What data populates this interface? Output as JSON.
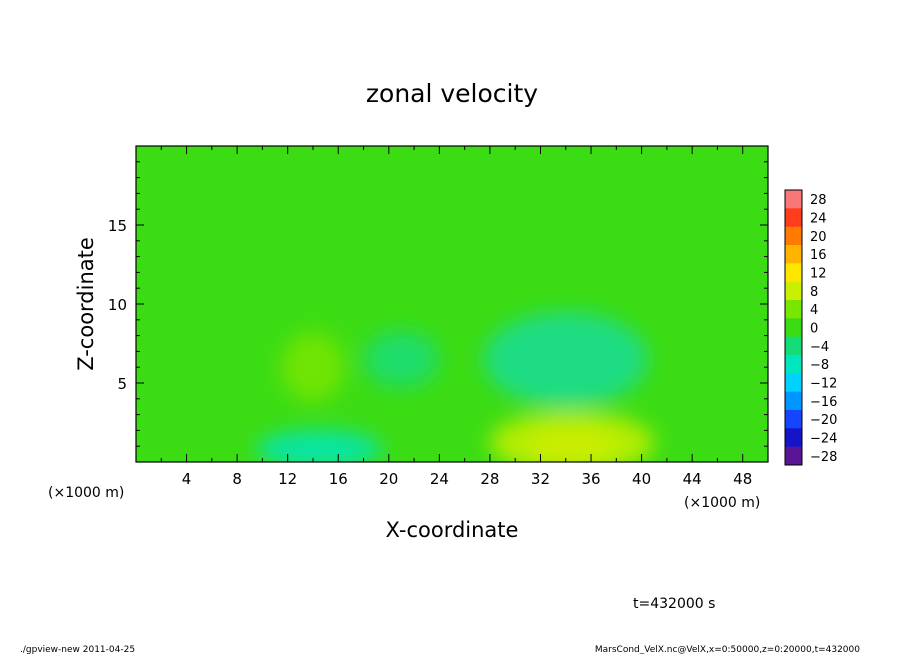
{
  "chart_data": {
    "type": "heatmap",
    "title": "zonal velocity",
    "xlabel": "X-coordinate",
    "ylabel": "Z-coordinate",
    "x_unit": "(×1000 m)",
    "z_unit": "(×1000 m)",
    "xlim": [
      0,
      50
    ],
    "ylim": [
      0,
      20
    ],
    "x_ticks": [
      4,
      8,
      12,
      16,
      20,
      24,
      28,
      32,
      36,
      40,
      44,
      48
    ],
    "y_ticks": [
      5,
      10,
      15
    ],
    "colorbar": {
      "levels": [
        28,
        24,
        20,
        16,
        12,
        8,
        4,
        0,
        -4,
        -8,
        -12,
        -16,
        -20,
        -24,
        -28
      ],
      "labels": [
        "28",
        "24",
        "20",
        "16",
        "12",
        "8",
        "4",
        "0",
        "−4",
        "−8",
        "−12",
        "−16",
        "−20",
        "−24",
        "−28"
      ],
      "colors": [
        "#f87878",
        "#ff3c1c",
        "#ff7a00",
        "#ffb400",
        "#ffe600",
        "#c8f000",
        "#78e600",
        "#3cdc14",
        "#14dc78",
        "#00e6be",
        "#00d2ff",
        "#0096ff",
        "#1446ff",
        "#1414c8",
        "#5a1496"
      ]
    },
    "background_value_color": "#3cdc14",
    "features": [
      {
        "x": 34.5,
        "z": 1.0,
        "value": 12,
        "color": "#ffe600",
        "rx": 3.5,
        "rz": 1.0
      },
      {
        "x": 34.5,
        "z": 1.2,
        "value": 8,
        "color": "#c8f000",
        "rx": 6.5,
        "rz": 2.0
      },
      {
        "x": 14.5,
        "z": 0.8,
        "value": -8,
        "color": "#00e6be",
        "rx": 5.0,
        "rz": 1.2
      },
      {
        "x": 34.0,
        "z": 6.5,
        "value": -6,
        "color": "#14dc96",
        "rx": 6.5,
        "rz": 3.0
      },
      {
        "x": 21.0,
        "z": 6.5,
        "value": -5,
        "color": "#14dc78",
        "rx": 3.0,
        "rz": 1.8
      },
      {
        "x": 14.0,
        "z": 6.0,
        "value": 3,
        "color": "#78e600",
        "rx": 2.5,
        "rz": 2.2
      }
    ]
  },
  "time_label": "t=432000 s",
  "footer": {
    "left": "./gpview-new  2011-04-25",
    "right": "MarsCond_VelX.nc@VelX,x=0:50000,z=0:20000,t=432000"
  }
}
